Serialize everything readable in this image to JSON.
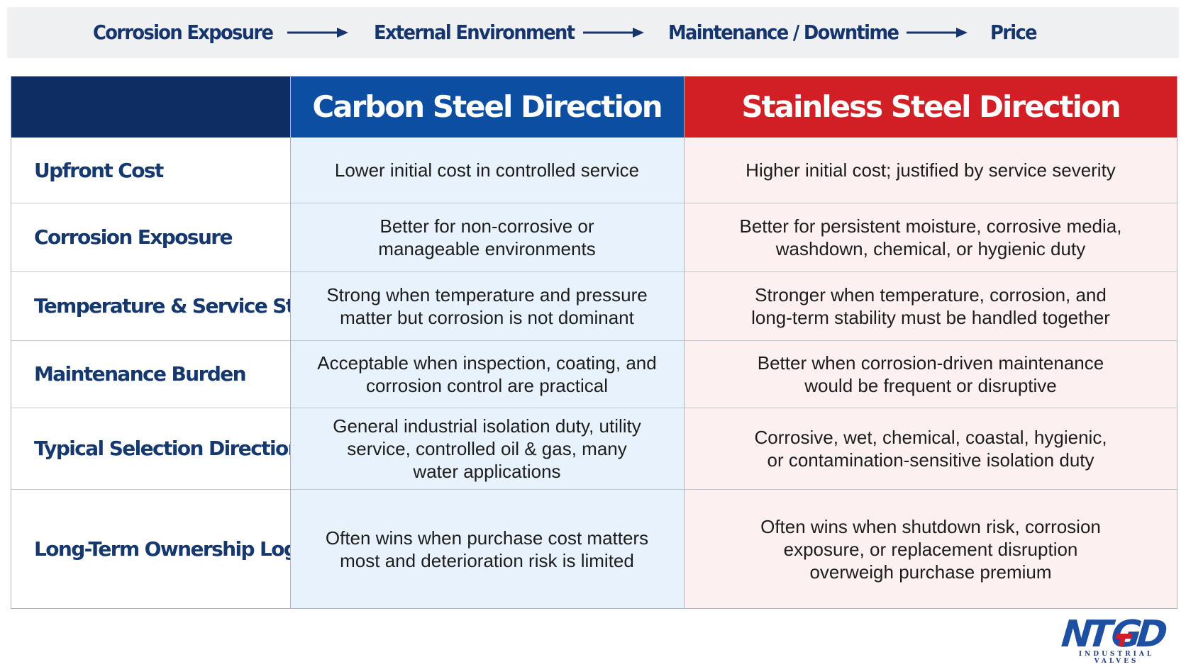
{
  "flow": {
    "items": [
      "Corrosion Exposure",
      "External Environment",
      "Maintenance / Downtime",
      "Price"
    ],
    "arrow_color": "#16356c"
  },
  "table": {
    "headers": {
      "blank": "",
      "carbon": "Carbon Steel Direction",
      "stainless": "Stainless Steel Direction"
    },
    "rows": [
      {
        "label": "Upfront Cost",
        "carbon": "Lower initial cost in controlled service",
        "stainless": "Higher initial cost; justified by service severity"
      },
      {
        "label": "Corrosion Exposure",
        "carbon": "Better for non-corrosive or\nmanageable environments",
        "stainless": "Better for persistent moisture, corrosive media,\nwashdown, chemical, or hygienic duty"
      },
      {
        "label": "Temperature & Service Stability",
        "carbon": "Strong when temperature and pressure\nmatter but corrosion is not dominant",
        "stainless": "Stronger when temperature, corrosion, and\nlong-term stability must be handled together"
      },
      {
        "label": "Maintenance Burden",
        "carbon": "Acceptable when inspection, coating, and\ncorrosion control are practical",
        "stainless": "Better when corrosion-driven maintenance\nwould be frequent or disruptive"
      },
      {
        "label": "Typical Selection Direction",
        "carbon": "General industrial isolation duty, utility\nservice, controlled oil & gas, many\nwater applications",
        "stainless": "Corrosive, wet, chemical, coastal, hygienic,\nor contamination-sensitive isolation duty"
      },
      {
        "label": "Long-Term Ownership Logic",
        "carbon": "Often wins when purchase cost matters\nmost and deterioration risk is limited",
        "stainless": "Often wins when shutdown risk, corrosion\nexposure, or replacement disruption\noverweigh purchase premium"
      }
    ]
  },
  "logo": {
    "text": "NTGD",
    "tagline": "INDUSTRIAL VALVES",
    "colors": {
      "blue": "#1d4fa3",
      "red": "#d21f26"
    }
  },
  "colors": {
    "navy": "#0d2d63",
    "carbon_blue": "#0b4ea2",
    "stainless_red": "#d21f26",
    "carbon_tint": "#e7f2fc",
    "stainless_tint": "#fdf0f0",
    "label_text": "#15386e"
  }
}
